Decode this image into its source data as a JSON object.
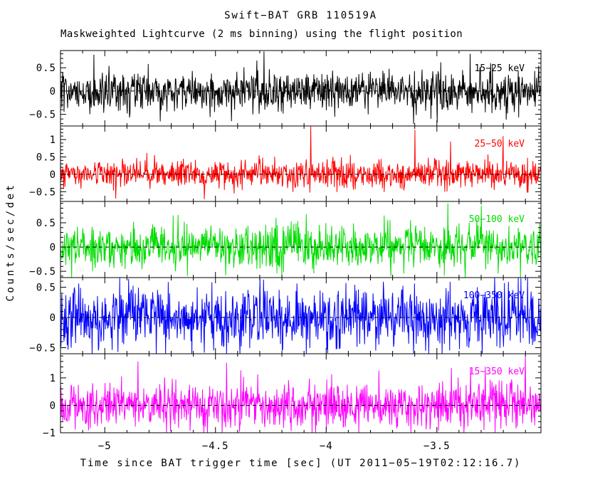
{
  "figure": {
    "background": "#ffffff",
    "frame_color": "#000000"
  },
  "chart_data": {
    "type": "line",
    "title": "Swift−BAT GRB 110519A",
    "subtitle": "Maskweighted Lightcurve (2 ms binning) using the flight position",
    "xlabel": "Time since BAT trigger time [sec] (UT 2011−05−19T02:12:16.7)",
    "ylabel": "Counts/sec/det",
    "xlim": [
      -5.2,
      -3.03
    ],
    "xticks": {
      "major": [
        -5,
        -4.5,
        -4,
        -3.5
      ],
      "labels": [
        "−5",
        "−4.5",
        "−4",
        "−3.5"
      ],
      "minor_step": 0.1
    },
    "binning": "2 ms",
    "n_points": 1080,
    "noise_mean": 0,
    "zero_line": {
      "style": "dashed",
      "color": "#000000"
    },
    "legend_position": "inside-top-right-per-panel",
    "grid": false,
    "panels": [
      {
        "label": "15−25 keV",
        "color": "#000000",
        "ylim": [
          -0.75,
          0.87
        ],
        "minor_step": 0.1,
        "major_step": 0.5,
        "yticks": [
          {
            "v": 0.5,
            "t": "0.5"
          },
          {
            "v": 0,
            "t": "0"
          },
          {
            "v": -0.5,
            "t": "−0.5"
          }
        ],
        "sigma": 0.21,
        "seed": 101,
        "spikes": [
          {
            "t": -5.05,
            "v": 0.78
          },
          {
            "t": -4.28,
            "v": 0.85
          },
          {
            "t": -3.35,
            "v": 0.8
          },
          {
            "t": -4.75,
            "v": -0.65
          }
        ]
      },
      {
        "label": "25−50 keV",
        "color": "#ff0000",
        "ylim": [
          -0.78,
          1.39
        ],
        "minor_step": 0.1,
        "major_step": 0.5,
        "yticks": [
          {
            "v": 1,
            "t": "1"
          },
          {
            "v": 0.5,
            "t": "0.5"
          },
          {
            "v": 0,
            "t": "0"
          },
          {
            "v": -0.5,
            "t": "−0.5"
          }
        ],
        "sigma": 0.2,
        "seed": 202,
        "spikes": [
          {
            "t": -4.07,
            "v": 1.38
          },
          {
            "t": -3.6,
            "v": 1.28
          },
          {
            "t": -3.2,
            "v": 1.1
          },
          {
            "t": -4.95,
            "v": -0.7
          },
          {
            "t": -4.55,
            "v": -0.72
          }
        ]
      },
      {
        "label": "50−100 keV",
        "color": "#00dd00",
        "ylim": [
          -0.63,
          0.94
        ],
        "minor_step": 0.1,
        "major_step": 0.5,
        "yticks": [
          {
            "v": 0.5,
            "t": "0.5"
          },
          {
            "v": 0,
            "t": "0"
          },
          {
            "v": -0.5,
            "t": "−0.5"
          }
        ],
        "sigma": 0.22,
        "seed": 303,
        "spikes": [
          {
            "t": -3.45,
            "v": 0.9
          },
          {
            "t": -3.3,
            "v": 0.85
          },
          {
            "t": -4.2,
            "v": -0.6
          },
          {
            "t": -3.65,
            "v": -0.55
          }
        ]
      },
      {
        "label": "100−350 keV",
        "color": "#0000ff",
        "ylim": [
          -0.6,
          0.66
        ],
        "minor_step": 0.1,
        "major_step": 0.5,
        "yticks": [
          {
            "v": 0.5,
            "t": "0.5"
          },
          {
            "v": 0,
            "t": "0"
          },
          {
            "v": -0.5,
            "t": "−0.5"
          }
        ],
        "sigma": 0.25,
        "seed": 404,
        "spikes": [
          {
            "t": -4.3,
            "v": 0.64
          },
          {
            "t": -3.12,
            "v": 0.65
          },
          {
            "t": -4.55,
            "v": -0.58
          },
          {
            "t": -3.55,
            "v": -0.55
          }
        ]
      },
      {
        "label": "15−350 keV",
        "color": "#ff00ff",
        "ylim": [
          -1.0,
          1.88
        ],
        "minor_step": 0.2,
        "major_step": 1,
        "yticks": [
          {
            "v": 1,
            "t": "1"
          },
          {
            "v": 0,
            "t": "0"
          },
          {
            "v": -1,
            "t": "−1"
          }
        ],
        "sigma": 0.42,
        "seed": 505,
        "spikes": [
          {
            "t": -4.85,
            "v": 1.6
          },
          {
            "t": -4.45,
            "v": 1.55
          },
          {
            "t": -3.1,
            "v": 1.8
          },
          {
            "t": -4.0,
            "v": -0.9
          }
        ]
      }
    ]
  }
}
